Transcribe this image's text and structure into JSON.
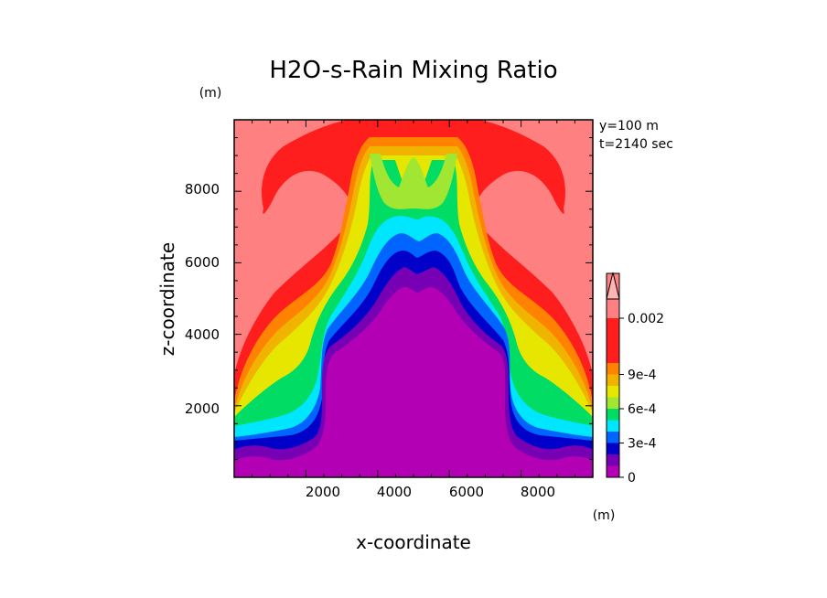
{
  "chart_data": {
    "type": "heatmap",
    "title": "H2O-s-Rain Mixing Ratio",
    "xlabel": "x-coordinate",
    "ylabel": "z-coordinate",
    "x_unit": "(m)",
    "y_unit": "(m)",
    "xlim": [
      0,
      10000
    ],
    "ylim": [
      0,
      10000
    ],
    "x_ticks": [
      2000,
      4000,
      6000,
      8000
    ],
    "y_ticks": [
      2000,
      4000,
      6000,
      8000
    ],
    "annotations": [
      "y=100 m",
      "t=2140 sec"
    ],
    "colorbar": {
      "levels": [
        0,
        0.0001,
        0.0002,
        0.0003,
        0.0004,
        0.0005,
        0.0006,
        0.0007,
        0.0008,
        0.0009,
        0.001,
        0.002
      ],
      "tick_labels": [
        {
          "value": 0,
          "label": "0"
        },
        {
          "value": 0.0003,
          "label": "3e-4"
        },
        {
          "value": 0.0006,
          "label": "6e-4"
        },
        {
          "value": 0.0009,
          "label": "9e-4"
        },
        {
          "value": 0.002,
          "label": "0.002"
        }
      ],
      "colors": [
        "#b400b4",
        "#7800b4",
        "#0000c8",
        "#0064ff",
        "#00e6ff",
        "#00dc64",
        "#a0e632",
        "#e6e600",
        "#f0b400",
        "#ff8200",
        "#ff1e1e",
        "#ff8080"
      ]
    },
    "field_description_levels": [
      {
        "level_index": 11,
        "color": "#ff8080"
      },
      {
        "level_index": 10,
        "color": "#ff1e1e"
      },
      {
        "level_index": 9,
        "color": "#ff8200"
      },
      {
        "level_index": 8,
        "color": "#f0b400"
      },
      {
        "level_index": 7,
        "color": "#e6e600"
      },
      {
        "level_index": 6,
        "color": "#a0e632"
      },
      {
        "level_index": 5,
        "color": "#00dc64"
      },
      {
        "level_index": 4,
        "color": "#00e6ff"
      },
      {
        "level_index": 3,
        "color": "#0064ff"
      },
      {
        "level_index": 2,
        "color": "#0000c8"
      },
      {
        "level_index": 1,
        "color": "#7800b4"
      },
      {
        "level_index": 0,
        "color": "#b400b4"
      }
    ]
  }
}
